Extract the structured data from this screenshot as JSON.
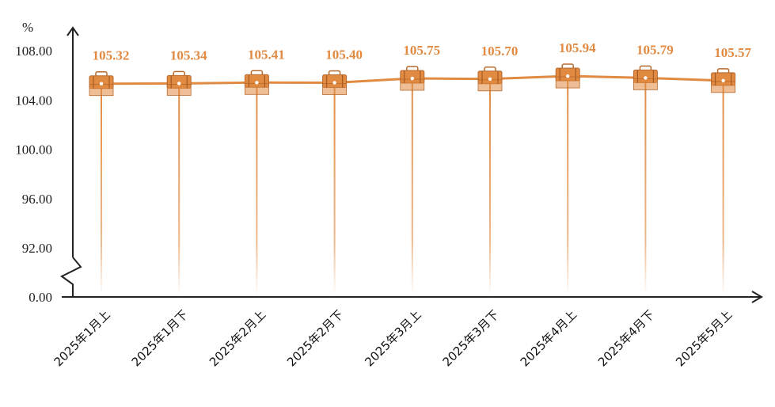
{
  "chart_data": {
    "type": "line",
    "title": "",
    "xlabel": "",
    "ylabel": "%",
    "categories": [
      "2025年1月上",
      "2025年1月下",
      "2025年2月上",
      "2025年2月下",
      "2025年3月上",
      "2025年3月下",
      "2025年4月上",
      "2025年4月下",
      "2025年5月上"
    ],
    "series": [
      {
        "values": [
          105.32,
          105.34,
          105.41,
          105.4,
          105.75,
          105.7,
          105.94,
          105.79,
          105.57
        ]
      }
    ],
    "data_labels": [
      "105.32",
      "105.34",
      "105.41",
      "105.40",
      "105.75",
      "105.70",
      "105.94",
      "105.79",
      "105.57"
    ],
    "yticks": [
      0,
      92,
      96,
      100,
      104,
      108
    ],
    "ytick_labels": [
      "0.00",
      "92.00",
      "96.00",
      "100.00",
      "104.00",
      "108.00"
    ],
    "ylim": [
      92,
      108
    ],
    "axis_break": "between 0.00 and 92.00",
    "grid": false,
    "colors": {
      "line": "#e08a42",
      "marker": "#e08a42",
      "label": "#e08a42",
      "axis": "#222222"
    }
  }
}
